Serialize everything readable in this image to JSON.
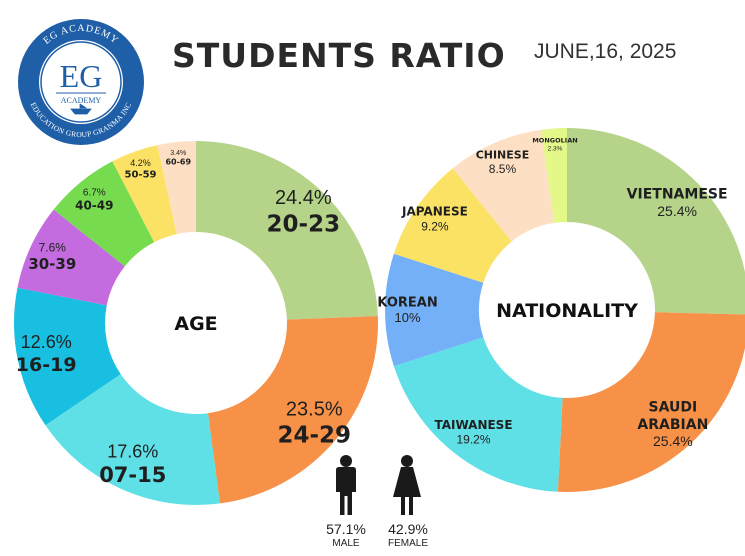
{
  "header": {
    "title": "STUDENTS RATIO",
    "date": "JUNE,16, 2025"
  },
  "logo": {
    "initials": "EG",
    "ring_text_top": "EG ACADEMY",
    "sub_text": "ACADEMY",
    "ring_text_bottom": "EDUCATION GROUP GRANMA INC"
  },
  "chart_data": [
    {
      "type": "pie",
      "title": "AGE",
      "slices": [
        {
          "label": "20-23",
          "value": 24.4,
          "pct_text": "24.4%",
          "color": "#b5d48a"
        },
        {
          "label": "24-29",
          "value": 23.5,
          "pct_text": "23.5%",
          "color": "#f79148"
        },
        {
          "label": "07-15",
          "value": 17.6,
          "pct_text": "17.6%",
          "color": "#5fe0e6"
        },
        {
          "label": "16-19",
          "value": 12.6,
          "pct_text": "12.6%",
          "color": "#18bfe0"
        },
        {
          "label": "30-39",
          "value": 7.6,
          "pct_text": "7.6%",
          "color": "#c46be0"
        },
        {
          "label": "40-49",
          "value": 6.7,
          "pct_text": "6.7%",
          "color": "#76db4f"
        },
        {
          "label": "50-59",
          "value": 4.2,
          "pct_text": "4.2%",
          "color": "#fbe164"
        },
        {
          "label": "60-69",
          "value": 3.4,
          "pct_text": "3.4%",
          "color": "#fde0c4"
        }
      ]
    },
    {
      "type": "pie",
      "title": "NATIONALITY",
      "slices": [
        {
          "label": "VIETNAMESE",
          "value": 25.4,
          "pct_text": "25.4%",
          "color": "#b5d48a"
        },
        {
          "label": "SAUDI ARABIAN",
          "value": 25.4,
          "pct_text": "25.4%",
          "color": "#f79148"
        },
        {
          "label": "TAIWANESE",
          "value": 19.2,
          "pct_text": "19.2%",
          "color": "#5fe0e6"
        },
        {
          "label": "KOREAN",
          "value": 10,
          "pct_text": "10%",
          "color": "#74b0f7"
        },
        {
          "label": "JAPANESE",
          "value": 9.2,
          "pct_text": "9.2%",
          "color": "#fbe164"
        },
        {
          "label": "CHINESE",
          "value": 8.5,
          "pct_text": "8.5%",
          "color": "#fde0c4"
        },
        {
          "label": "MONGOLIAN",
          "value": 2.3,
          "pct_text": "2.3%",
          "color": "#e4f789"
        }
      ]
    }
  ],
  "gender": [
    {
      "label": "MALE",
      "value": 57.1,
      "pct_text": "57.1%",
      "icon": "male-person-icon"
    },
    {
      "label": "FEMALE",
      "value": 42.9,
      "pct_text": "42.9%",
      "icon": "female-person-icon"
    }
  ]
}
